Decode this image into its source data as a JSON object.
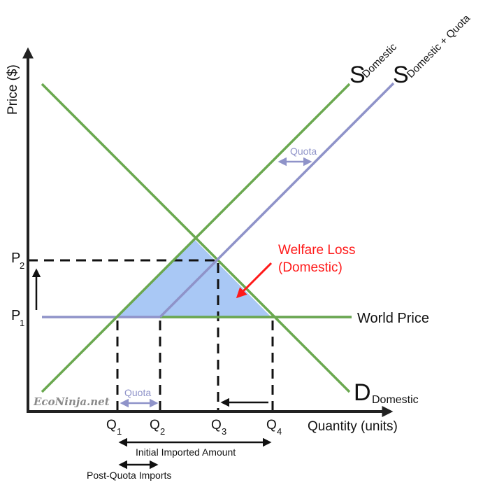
{
  "colors": {
    "supply_domestic": "#6aa84f",
    "demand_domestic": "#6aa84f",
    "supply_quota": "#8f93c9",
    "world_price": "#8f93c9",
    "welfare_loss_fill": "#a9c8f5",
    "annotation_red": "#ff1a1a",
    "axes": "#222222"
  },
  "axes": {
    "y_label": "Price ($)",
    "x_label": "Quantity (units)"
  },
  "price_labels": {
    "p1_main": "P",
    "p1_sub": "1",
    "p2_main": "P",
    "p2_sub": "2"
  },
  "quantity_labels": {
    "q1_main": "Q",
    "q1_sub": "1",
    "q2_main": "Q",
    "q2_sub": "2",
    "q3_main": "Q",
    "q3_sub": "3",
    "q4_main": "Q",
    "q4_sub": "4"
  },
  "curves": {
    "supply_domestic_main": "S",
    "supply_domestic_sub": "Domestic",
    "supply_quota_main": "S",
    "supply_quota_sub": "Domestic + Quota",
    "demand_main": "D",
    "demand_sub": "Domestic",
    "world_price": "World Price"
  },
  "annotations": {
    "welfare_loss_line1": "Welfare Loss",
    "welfare_loss_line2": "(Domestic)",
    "quota_upper": "Quota",
    "quota_lower": "Quota",
    "initial_imports": "Initial Imported Amount",
    "post_quota_imports": "Post-Quota Imports",
    "watermark": "EcoNinja.net"
  }
}
